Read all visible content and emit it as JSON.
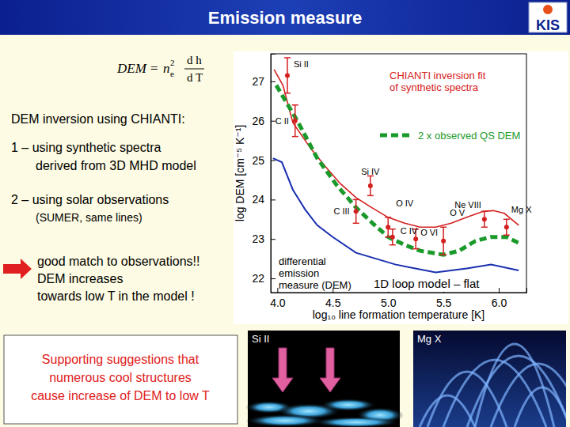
{
  "slide": {
    "title": "Emission measure",
    "logo": "KIS",
    "formula": {
      "lhs": "DEM",
      "eq": "=",
      "base": "n",
      "sub": "e",
      "sup": "2",
      "num": "d h",
      "den": "d T"
    },
    "intro": "DEM inversion using CHIANTI:",
    "item1": [
      "1 – using synthetic spectra",
      "derived from 3D MHD model"
    ],
    "item2": [
      "2 – using solar observations",
      "(SUMER, same lines)"
    ],
    "conclusion": [
      "good match to observations!!",
      "DEM increases",
      "towards low T  in the model !"
    ],
    "box": [
      "Supporting suggestions that",
      "numerous cool structures",
      "cause increase of DEM to low T"
    ],
    "image_labels": [
      "Si II",
      "Mg X"
    ]
  },
  "chart_data": {
    "type": "line",
    "xlabel": "log₁₀ line formation temperature  [K]",
    "ylabel": "log DEM  [cm⁻⁵ K⁻¹]",
    "xlim": [
      3.94,
      6.25
    ],
    "ylim": [
      21.64,
      27.7
    ],
    "xticks": [
      {
        "value": 4,
        "label": "4.0"
      },
      4.5,
      {
        "value": 5,
        "label": "5.0"
      },
      5.5,
      {
        "value": 6,
        "label": "6.0"
      }
    ],
    "yticks": [
      22,
      23,
      24,
      25,
      26,
      27
    ],
    "annotations": [
      "differential",
      "emission",
      "measure (DEM)"
    ],
    "series": [
      {
        "name": "CHIANTI inversion fit of synthetic spectra",
        "color": "#d42020",
        "line_style": "solid",
        "x": [
          3.97,
          4.05,
          4.14,
          4.3,
          4.43,
          4.57,
          4.71,
          4.85,
          5.0,
          5.15,
          5.29,
          5.43,
          5.57,
          5.71,
          5.86,
          5.95,
          6.05,
          6.18
        ],
        "values": [
          27.3,
          26.9,
          25.95,
          25.3,
          24.85,
          24.4,
          24.05,
          23.8,
          23.55,
          23.4,
          23.3,
          23.3,
          23.4,
          23.55,
          23.7,
          23.72,
          23.65,
          23.35
        ]
      },
      {
        "name": "2 x observed QS DEM",
        "color": "#1a9a2a",
        "line_style": "dashed",
        "x": [
          3.99,
          4.18,
          4.36,
          4.54,
          4.71,
          4.86,
          5.0,
          5.15,
          5.29,
          5.5,
          5.64,
          5.79,
          5.93,
          6.07,
          6.18
        ],
        "values": [
          26.9,
          26.0,
          25.05,
          24.35,
          23.8,
          23.4,
          23.05,
          22.85,
          22.7,
          22.6,
          22.7,
          22.95,
          23.05,
          23.05,
          22.9
        ]
      },
      {
        "name": "1D loop model – flat",
        "color": "#1a2fb0",
        "line_style": "solid",
        "x": [
          3.96,
          4.04,
          4.14,
          4.25,
          4.36,
          4.5,
          4.71,
          5.07,
          5.43,
          5.71,
          5.93,
          6.18
        ],
        "values": [
          25.05,
          24.95,
          24.25,
          23.75,
          23.35,
          23.05,
          22.65,
          22.35,
          22.15,
          22.25,
          22.35,
          22.2
        ]
      },
      {
        "type": "scatter",
        "marker": "circle",
        "color": "#d42020",
        "x": [
          4.09,
          4.16,
          4.84,
          4.71,
          5.0,
          5.04,
          5.25,
          5.5,
          5.87,
          6.07
        ],
        "values": [
          27.15,
          26.0,
          24.35,
          23.7,
          23.3,
          23.05,
          23.0,
          22.95,
          23.5,
          23.3
        ],
        "errors": [
          0.45,
          0.4,
          0.25,
          0.3,
          0.25,
          0.2,
          0.25,
          0.35,
          0.2,
          0.2
        ],
        "labels": [
          "Si II",
          "C II",
          "Si IV",
          "C III",
          "O IV",
          "C IV",
          "O VI",
          "O V",
          "Ne VIII",
          "Mg X"
        ]
      }
    ]
  }
}
